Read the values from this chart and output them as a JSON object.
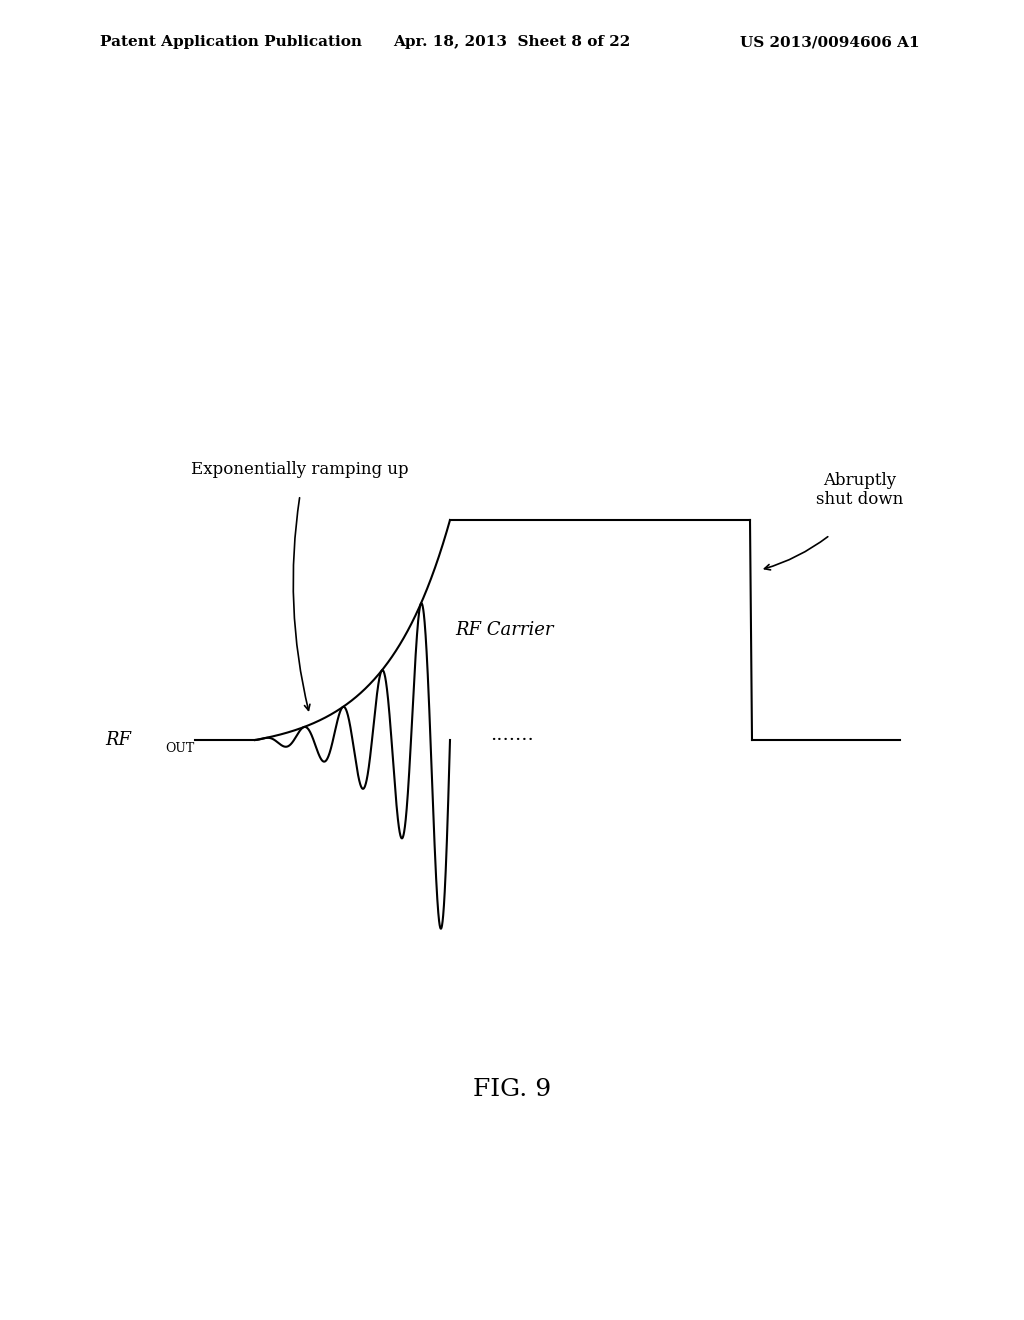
{
  "background_color": "#ffffff",
  "header_left": "Patent Application Publication",
  "header_center": "Apr. 18, 2013  Sheet 8 of 22",
  "header_right": "US 2013/0094606 A1",
  "fig_label": "FIG. 9",
  "label_rfout": "RF",
  "label_rfout_sub": "OUT",
  "label_exp_ramp": "Exponentially ramping up",
  "label_rf_carrier": "RF Carrier",
  "label_abrupt": "Abruptly\nshut down",
  "label_dots": ".......",
  "line_color": "#000000",
  "text_color": "#000000",
  "header_fontsize": 11,
  "body_fontsize": 13,
  "fig_label_fontsize": 18
}
